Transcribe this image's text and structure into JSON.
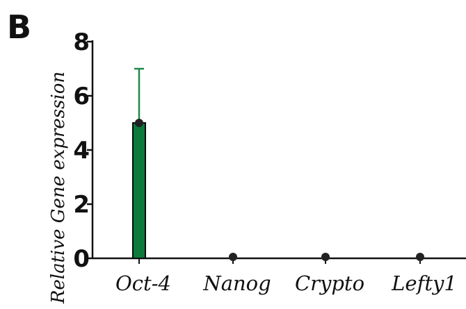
{
  "panel_label": "B",
  "colors": {
    "bar": "#0b7a3a",
    "error_bar": "#1f8a4a",
    "point": "#222222",
    "axis": "#111111"
  },
  "chart_data": {
    "type": "bar",
    "categories": [
      "Oct-4",
      "Nanog",
      "Crypto",
      "Lefty1"
    ],
    "values": [
      5,
      0.05,
      0.05,
      0
    ],
    "error_upper": [
      7,
      null,
      null,
      null
    ],
    "ylabel": "Relative Gene expression",
    "xlabel": "",
    "ylim": [
      0,
      8
    ],
    "yticks": [
      0,
      2,
      4,
      6,
      8
    ],
    "grid": false
  }
}
